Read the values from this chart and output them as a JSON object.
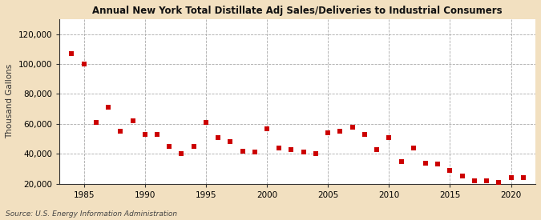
{
  "title": "Annual New York Total Distillate Adj Sales/Deliveries to Industrial Consumers",
  "ylabel": "Thousand Gallons",
  "source": "Source: U.S. Energy Information Administration",
  "fig_background_color": "#f2e0c0",
  "plot_background_color": "#ffffff",
  "marker_color": "#cc0000",
  "marker": "s",
  "marker_size": 4,
  "xlim": [
    1983,
    2022
  ],
  "ylim": [
    20000,
    130000
  ],
  "yticks": [
    20000,
    40000,
    60000,
    80000,
    100000,
    120000
  ],
  "xticks": [
    1985,
    1990,
    1995,
    2000,
    2005,
    2010,
    2015,
    2020
  ],
  "years": [
    1984,
    1985,
    1986,
    1987,
    1988,
    1989,
    1990,
    1991,
    1992,
    1993,
    1994,
    1995,
    1996,
    1997,
    1998,
    1999,
    2000,
    2001,
    2002,
    2003,
    2004,
    2005,
    2006,
    2007,
    2008,
    2009,
    2010,
    2011,
    2012,
    2013,
    2014,
    2015,
    2016,
    2017,
    2018,
    2019,
    2020,
    2021
  ],
  "values": [
    107000,
    100000,
    61000,
    71000,
    55000,
    62000,
    53000,
    53000,
    45000,
    40000,
    45000,
    61000,
    51000,
    48000,
    42000,
    41000,
    57000,
    44000,
    43000,
    41000,
    40000,
    54000,
    55000,
    58000,
    53000,
    43000,
    51000,
    35000,
    44000,
    34000,
    33000,
    29000,
    25000,
    22000,
    22000,
    21000,
    24000,
    24000
  ]
}
